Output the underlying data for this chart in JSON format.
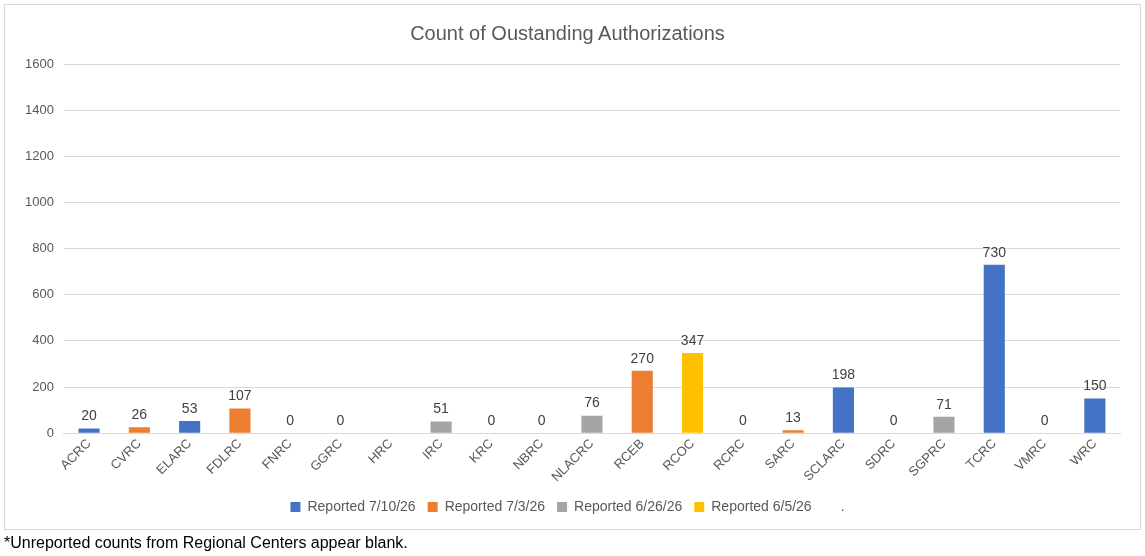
{
  "chart_data": {
    "type": "bar",
    "title": "Count of Oustanding Authorizations",
    "stacked": true,
    "categories": [
      "ACRC",
      "CVRC",
      "ELARC",
      "FDLRC",
      "FNRC",
      "GGRC",
      "HRC",
      "IRC",
      "KRC",
      "NBRC",
      "NLACRC",
      "RCEB",
      "RCOC",
      "RCRC",
      "SARC",
      "SCLARC",
      "SDRC",
      "SGPRC",
      "TCRC",
      "VMRC",
      "WRC"
    ],
    "series": [
      {
        "name": "Reported 7/10/26",
        "color": "#4472c4",
        "values": [
          20,
          null,
          53,
          null,
          null,
          null,
          null,
          null,
          null,
          null,
          null,
          null,
          null,
          null,
          null,
          198,
          null,
          null,
          730,
          null,
          150
        ]
      },
      {
        "name": "Reported 7/3/26",
        "color": "#ed7d31",
        "values": [
          null,
          26,
          null,
          107,
          null,
          null,
          null,
          null,
          null,
          null,
          null,
          270,
          null,
          null,
          13,
          null,
          null,
          null,
          null,
          null,
          null
        ]
      },
      {
        "name": "Reported 6/26/26",
        "color": "#a5a5a5",
        "values": [
          null,
          null,
          null,
          null,
          null,
          null,
          null,
          51,
          null,
          null,
          76,
          null,
          null,
          null,
          null,
          null,
          null,
          71,
          null,
          null,
          null
        ]
      },
      {
        "name": "Reported 6/5/26",
        "color": "#ffc000",
        "values": [
          null,
          null,
          null,
          null,
          null,
          null,
          null,
          null,
          null,
          null,
          null,
          null,
          347,
          null,
          null,
          null,
          null,
          null,
          null,
          null,
          null
        ]
      },
      {
        "name": ".",
        "values": [
          null,
          null,
          null,
          null,
          0,
          0,
          null,
          null,
          0,
          0,
          null,
          null,
          null,
          0,
          null,
          null,
          0,
          null,
          null,
          0,
          null
        ]
      }
    ],
    "ylim": [
      0,
      1600
    ],
    "yticks": [
      0,
      200,
      400,
      600,
      800,
      1000,
      1200,
      1400,
      1600
    ],
    "grid": "y",
    "legend": "bottom",
    "data_labels": true,
    "annotations": [
      "*Unreported counts from Regional Centers appear blank."
    ]
  }
}
